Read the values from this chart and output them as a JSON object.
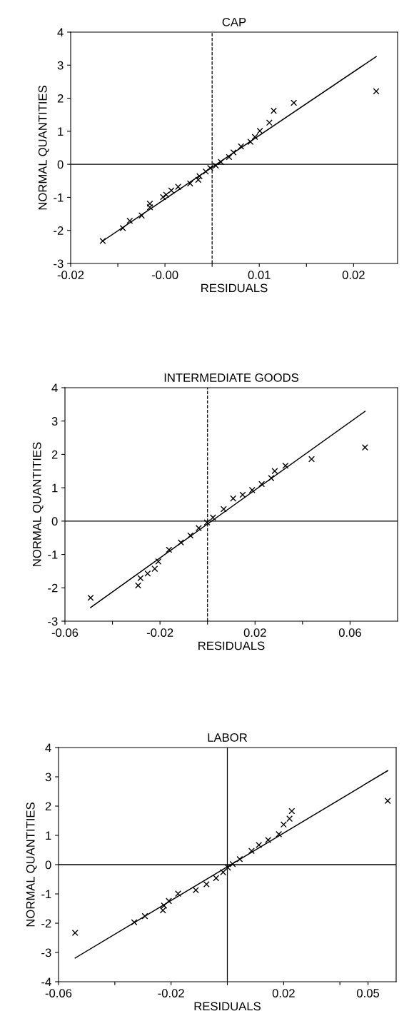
{
  "chart_data": [
    {
      "type": "scatter",
      "title": "CAP",
      "xlabel": "RESIDUALS",
      "ylabel": "NORMAL QUANTITIES",
      "marker": "cross",
      "grid": false,
      "xlim": [
        -0.02,
        0.032
      ],
      "xticks": [
        -0.02,
        {
          "value": -0.0125,
          "label": null
        },
        {
          "value": -0.005,
          "label": "-0.00"
        },
        {
          "value": 0.0025,
          "label": null
        },
        0.01,
        {
          "value": 0.0175,
          "label": null
        },
        {
          "value": 0.025,
          "label": "0.02"
        }
      ],
      "ylim": [
        -3,
        4
      ],
      "yticks": [
        -3,
        -2,
        -1,
        0,
        1,
        2,
        3,
        4
      ],
      "ref_lines": [
        {
          "axis": "y",
          "value": 0,
          "color": "#000000",
          "line_style": "solid"
        },
        {
          "axis": "x",
          "value": 0.0025,
          "color": "#000000",
          "line_style": "dashed"
        }
      ],
      "series": [
        {
          "color": "#000000",
          "x": [
            -0.0149,
            -0.0117,
            -0.0106,
            -0.0087,
            -0.0074,
            -0.0074,
            -0.0053,
            -0.0048,
            -0.004,
            -0.0029,
            -0.001,
            0.0003,
            0.0005,
            0.0015,
            0.0022,
            0.0031,
            0.0039,
            0.0052,
            0.0059,
            0.0071,
            0.0086,
            0.0093,
            0.0101,
            0.0116,
            0.0123,
            0.0155,
            0.0286
          ],
          "values": [
            -2.32,
            -1.93,
            -1.71,
            -1.55,
            -1.19,
            -1.3,
            -0.99,
            -0.92,
            -0.79,
            -0.68,
            -0.58,
            -0.47,
            -0.36,
            -0.22,
            -0.11,
            -0.04,
            0.07,
            0.22,
            0.36,
            0.54,
            0.68,
            0.83,
            1.01,
            1.26,
            1.62,
            1.86,
            2.21
          ]
        },
        {
          "type": "line",
          "color": "#000000",
          "marker": "none",
          "x": [
            -0.0149,
            0.0286
          ],
          "values": [
            -2.32,
            3.26
          ]
        }
      ]
    },
    {
      "type": "scatter",
      "title": "INTERMEDIATE GOODS",
      "xlabel": "RESIDUALS",
      "ylabel": "NORMAL QUANTITIES",
      "marker": "cross",
      "grid": false,
      "xlim": [
        -0.06,
        0.08
      ],
      "xticks": [
        -0.06,
        {
          "value": -0.04,
          "label": null
        },
        -0.02,
        {
          "value": 0,
          "label": null
        },
        0.02,
        {
          "value": 0.04,
          "label": null
        },
        0.06
      ],
      "ylim": [
        -3,
        4
      ],
      "yticks": [
        -3,
        -2,
        -1,
        0,
        1,
        2,
        3,
        4
      ],
      "ref_lines": [
        {
          "axis": "y",
          "value": 0,
          "color": "#000000",
          "line_style": "solid"
        },
        {
          "axis": "x",
          "value": 0,
          "color": "#000000",
          "line_style": "dashed"
        }
      ],
      "series": [
        {
          "color": "#000000",
          "x": [
            -0.0492,
            -0.0292,
            -0.0282,
            -0.0252,
            -0.0222,
            -0.0207,
            -0.0162,
            -0.0112,
            -0.0072,
            -0.0037,
            -0.0002,
            0.0023,
            0.0068,
            0.0108,
            0.0148,
            0.0188,
            0.0228,
            0.0268,
            0.0283,
            0.0328,
            0.0438,
            0.0663
          ],
          "values": [
            -2.3,
            -1.93,
            -1.71,
            -1.57,
            -1.43,
            -1.21,
            -0.86,
            -0.64,
            -0.43,
            -0.21,
            -0.04,
            0.11,
            0.36,
            0.68,
            0.79,
            0.93,
            1.11,
            1.29,
            1.5,
            1.66,
            1.86,
            2.21
          ]
        },
        {
          "type": "line",
          "color": "#000000",
          "marker": "none",
          "x": [
            -0.0492,
            0.0663
          ],
          "values": [
            -2.59,
            3.29
          ]
        }
      ]
    },
    {
      "type": "scatter",
      "title": "LABOR",
      "xlabel": "RESIDUALS",
      "ylabel": "NORMAL QUANTITIES",
      "marker": "cross",
      "grid": false,
      "xlim": [
        -0.06,
        0.06
      ],
      "xticks": [
        -0.06,
        {
          "value": -0.04,
          "label": null
        },
        -0.02,
        {
          "value": 0,
          "label": null
        },
        0.02,
        {
          "value": 0.04,
          "label": null
        },
        0.05
      ],
      "ylim": [
        -4,
        4
      ],
      "yticks": [
        -4,
        -3,
        -2,
        -1,
        0,
        1,
        2,
        3,
        4
      ],
      "ref_lines": [
        {
          "axis": "y",
          "value": 0,
          "color": "#000000",
          "line_style": "solid"
        },
        {
          "axis": "x",
          "value": 0,
          "color": "#000000",
          "line_style": "solid"
        }
      ],
      "series": [
        {
          "color": "#000000",
          "x": [
            -0.0541,
            -0.0331,
            -0.0293,
            -0.0229,
            -0.0225,
            -0.0208,
            -0.0175,
            -0.0112,
            -0.0074,
            -0.004,
            -0.0015,
            0.0002,
            0.0019,
            0.0044,
            0.0086,
            0.0112,
            0.0145,
            0.0183,
            0.02,
            0.0221,
            0.0229,
            0.057
          ],
          "values": [
            -2.33,
            -1.97,
            -1.76,
            -1.56,
            -1.4,
            -1.24,
            -0.99,
            -0.87,
            -0.67,
            -0.46,
            -0.26,
            -0.1,
            0.02,
            0.19,
            0.47,
            0.67,
            0.84,
            1.04,
            1.37,
            1.57,
            1.83,
            2.18
          ]
        },
        {
          "type": "line",
          "color": "#000000",
          "marker": "none",
          "x": [
            -0.0541,
            0.057
          ],
          "values": [
            -3.19,
            3.21
          ]
        }
      ]
    }
  ]
}
